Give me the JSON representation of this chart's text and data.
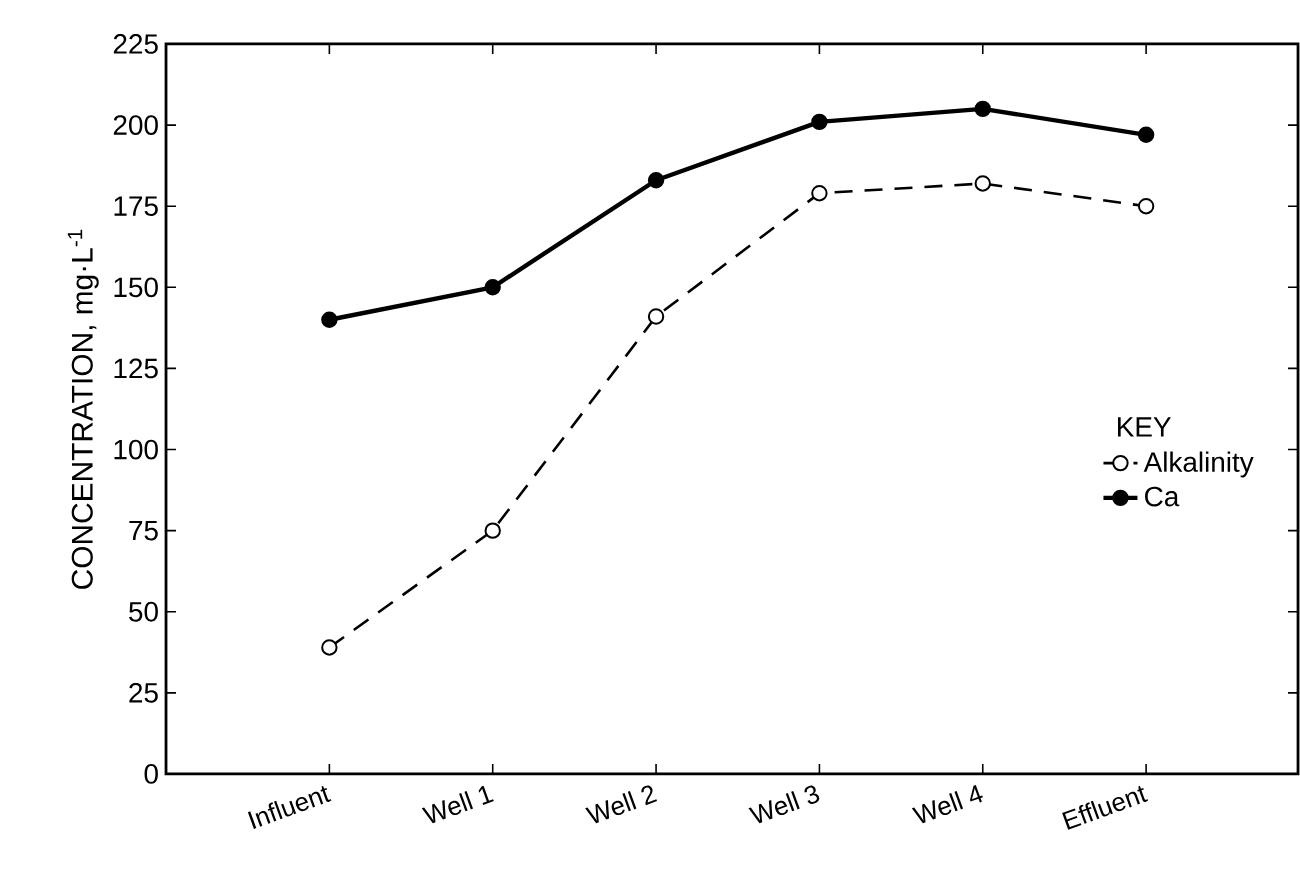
{
  "chart_data": {
    "type": "line",
    "ylabel": "CONCENTRATION, mg·L$^{-1}$",
    "legend_title": "KEY",
    "categories": [
      "Influent",
      "Well 1",
      "Well 2",
      "Well 3",
      "Well 4",
      "Effluent"
    ],
    "series": [
      {
        "name": "Alkalinity",
        "color": "#000000",
        "line_style": "dashed",
        "values": [
          39,
          75,
          141,
          179,
          182,
          175
        ]
      },
      {
        "name": "Ca",
        "color": "#000000",
        "line_style": "solid",
        "values": [
          140,
          150,
          183,
          201,
          205,
          197
        ]
      }
    ],
    "ylim": [
      0,
      225
    ],
    "yticks": [
      0,
      25,
      50,
      75,
      100,
      125,
      150,
      175,
      200,
      225
    ],
    "marker": "circle",
    "legend": "right",
    "grid": false
  }
}
